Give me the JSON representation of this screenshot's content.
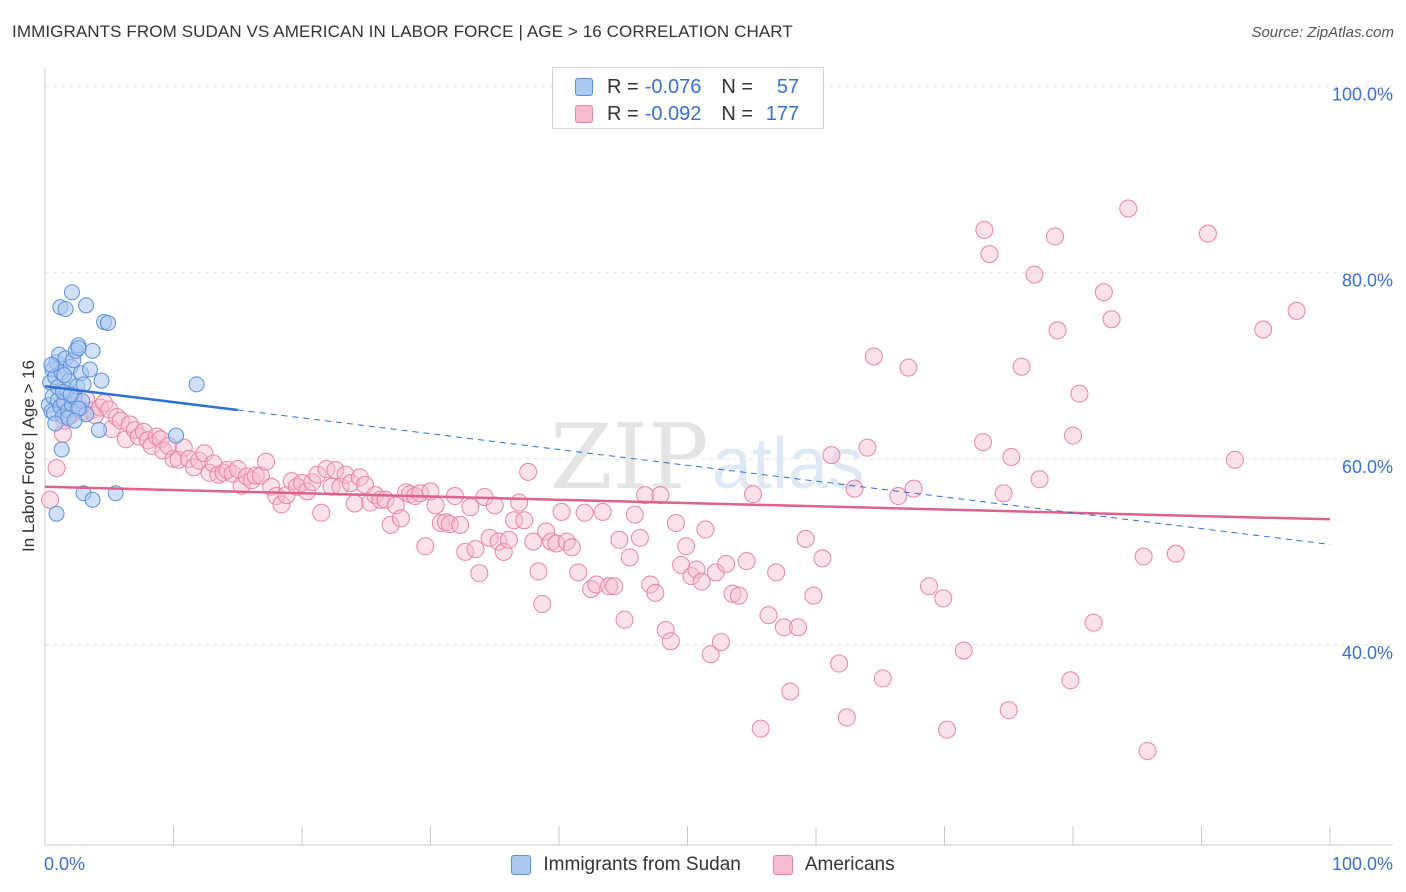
{
  "header": {
    "title": "IMMIGRANTS FROM SUDAN VS AMERICAN IN LABOR FORCE | AGE > 16 CORRELATION CHART",
    "source": "Source: ZipAtlas.com"
  },
  "legend_top": {
    "rows": [
      {
        "r_label": "R =",
        "r_value": "-0.076",
        "n_label": "N =",
        "n_value": "57"
      },
      {
        "r_label": "R =",
        "r_value": "-0.092",
        "n_label": "N =",
        "n_value": "177"
      }
    ]
  },
  "legend_bottom": {
    "items": [
      "Immigrants from Sudan",
      "Americans"
    ]
  },
  "watermark": {
    "zip": "ZIP",
    "atlas": "atlas"
  },
  "colors": {
    "blue_fill": "#aac8f0",
    "blue_stroke": "#5b8ede",
    "blue_line": "#2f6fd6",
    "pink_fill": "#f6bcd0",
    "pink_stroke": "#e884a8",
    "pink_line": "#e0608e",
    "axis_text": "#3b6fd4",
    "grid": "#e3e3e3"
  },
  "chart_data": {
    "type": "scatter",
    "title": "IMMIGRANTS FROM SUDAN VS AMERICAN IN LABOR FORCE | AGE > 16 CORRELATION CHART",
    "xlabel": "",
    "ylabel": "In Labor Force | Age > 16",
    "xlim": [
      0,
      100
    ],
    "ylim": [
      18.5,
      102
    ],
    "x_tick_labels": [
      "0.0%",
      "100.0%"
    ],
    "y_ticks": [
      40,
      60,
      80,
      100
    ],
    "y_tick_labels": [
      "40.0%",
      "60.0%",
      "80.0%",
      "100.0%"
    ],
    "grid": true,
    "series": [
      {
        "name": "Immigrants from Sudan",
        "R": -0.076,
        "N": 57,
        "trend": {
          "x0": 0,
          "y0": 67.8,
          "x1": 100,
          "y1": 50.8,
          "solid_until_x": 15
        },
        "points": [
          [
            0.3,
            65.8
          ],
          [
            0.4,
            68.2
          ],
          [
            0.5,
            65.1
          ],
          [
            0.6,
            69.6
          ],
          [
            0.6,
            66.7
          ],
          [
            0.7,
            64.9
          ],
          [
            0.8,
            68.8
          ],
          [
            0.9,
            70.4
          ],
          [
            1.0,
            66.3
          ],
          [
            1.0,
            67.7
          ],
          [
            1.1,
            71.2
          ],
          [
            1.2,
            65.6
          ],
          [
            1.3,
            69.3
          ],
          [
            1.4,
            64.6
          ],
          [
            1.5,
            66.1
          ],
          [
            1.6,
            70.8
          ],
          [
            1.7,
            67.4
          ],
          [
            1.8,
            65.2
          ],
          [
            1.9,
            68.4
          ],
          [
            2.0,
            69.9
          ],
          [
            2.1,
            65.8
          ],
          [
            2.2,
            70.6
          ],
          [
            2.3,
            66.6
          ],
          [
            2.4,
            71.6
          ],
          [
            2.5,
            67.8
          ],
          [
            2.6,
            72.2
          ],
          [
            2.7,
            65.4
          ],
          [
            2.8,
            69.2
          ],
          [
            2.9,
            66.2
          ],
          [
            3.0,
            68.0
          ],
          [
            3.2,
            64.8
          ],
          [
            3.5,
            69.6
          ],
          [
            1.2,
            76.3
          ],
          [
            1.6,
            76.1
          ],
          [
            2.1,
            77.9
          ],
          [
            3.2,
            76.5
          ],
          [
            4.6,
            74.7
          ],
          [
            4.9,
            74.6
          ],
          [
            3.7,
            71.6
          ],
          [
            2.6,
            71.9
          ],
          [
            4.4,
            68.4
          ],
          [
            11.8,
            68.0
          ],
          [
            2.6,
            65.4
          ],
          [
            1.8,
            64.4
          ],
          [
            4.2,
            63.1
          ],
          [
            10.2,
            62.5
          ],
          [
            1.3,
            61.0
          ],
          [
            3.0,
            56.3
          ],
          [
            3.7,
            55.6
          ],
          [
            5.5,
            56.3
          ],
          [
            0.9,
            54.1
          ],
          [
            1.4,
            67.2
          ],
          [
            0.8,
            63.8
          ],
          [
            2.3,
            64.1
          ],
          [
            1.5,
            69.0
          ],
          [
            0.5,
            70.1
          ],
          [
            2.0,
            66.9
          ]
        ]
      },
      {
        "name": "Americans",
        "R": -0.092,
        "N": 177,
        "trend": {
          "x0": 0,
          "y0": 57.0,
          "x1": 100,
          "y1": 53.5
        },
        "points": [
          [
            0.4,
            55.6
          ],
          [
            0.9,
            59.0
          ],
          [
            1.4,
            62.7
          ],
          [
            1.5,
            64.1
          ],
          [
            1.8,
            65.8
          ],
          [
            2.0,
            64.7
          ],
          [
            2.5,
            66.1
          ],
          [
            2.9,
            65.1
          ],
          [
            3.2,
            66.4
          ],
          [
            3.6,
            65.2
          ],
          [
            3.9,
            64.7
          ],
          [
            4.3,
            65.5
          ],
          [
            4.6,
            66.0
          ],
          [
            5.0,
            65.3
          ],
          [
            5.2,
            63.2
          ],
          [
            5.6,
            64.5
          ],
          [
            5.9,
            64.1
          ],
          [
            6.3,
            62.1
          ],
          [
            6.6,
            63.7
          ],
          [
            7.0,
            63.1
          ],
          [
            7.3,
            62.4
          ],
          [
            7.7,
            62.9
          ],
          [
            8.0,
            62.0
          ],
          [
            8.3,
            61.4
          ],
          [
            8.7,
            62.4
          ],
          [
            9.0,
            62.1
          ],
          [
            9.2,
            60.9
          ],
          [
            9.6,
            61.4
          ],
          [
            10.0,
            60.0
          ],
          [
            10.4,
            59.9
          ],
          [
            10.8,
            61.2
          ],
          [
            11.2,
            60.0
          ],
          [
            11.6,
            59.1
          ],
          [
            12.0,
            59.8
          ],
          [
            12.4,
            60.6
          ],
          [
            12.8,
            58.5
          ],
          [
            13.1,
            59.5
          ],
          [
            13.5,
            58.3
          ],
          [
            13.9,
            58.5
          ],
          [
            14.2,
            58.8
          ],
          [
            14.6,
            58.4
          ],
          [
            15.0,
            58.9
          ],
          [
            15.3,
            57.1
          ],
          [
            15.7,
            58.1
          ],
          [
            16.1,
            57.7
          ],
          [
            16.4,
            58.2
          ],
          [
            16.8,
            58.2
          ],
          [
            17.2,
            59.7
          ],
          [
            17.6,
            57.0
          ],
          [
            18.0,
            56.0
          ],
          [
            18.4,
            55.1
          ],
          [
            18.8,
            56.1
          ],
          [
            19.2,
            57.6
          ],
          [
            19.6,
            57.0
          ],
          [
            20.0,
            57.4
          ],
          [
            20.4,
            56.5
          ],
          [
            20.8,
            57.5
          ],
          [
            21.2,
            58.3
          ],
          [
            21.5,
            54.2
          ],
          [
            21.9,
            58.9
          ],
          [
            22.3,
            57.0
          ],
          [
            22.6,
            58.8
          ],
          [
            23.0,
            57.0
          ],
          [
            23.4,
            58.3
          ],
          [
            23.8,
            57.4
          ],
          [
            24.1,
            55.2
          ],
          [
            24.5,
            58.0
          ],
          [
            24.9,
            57.2
          ],
          [
            25.3,
            55.3
          ],
          [
            25.7,
            56.1
          ],
          [
            26.1,
            55.6
          ],
          [
            26.5,
            55.6
          ],
          [
            26.9,
            52.9
          ],
          [
            27.3,
            55.0
          ],
          [
            27.7,
            53.6
          ],
          [
            28.1,
            56.4
          ],
          [
            28.4,
            56.2
          ],
          [
            28.8,
            56.0
          ],
          [
            29.2,
            56.3
          ],
          [
            29.6,
            50.6
          ],
          [
            30.0,
            56.5
          ],
          [
            30.4,
            55.0
          ],
          [
            30.8,
            53.1
          ],
          [
            31.2,
            53.2
          ],
          [
            31.5,
            53.0
          ],
          [
            31.9,
            56.0
          ],
          [
            32.3,
            52.9
          ],
          [
            32.7,
            50.0
          ],
          [
            33.1,
            54.8
          ],
          [
            33.5,
            50.3
          ],
          [
            33.8,
            47.7
          ],
          [
            34.2,
            55.9
          ],
          [
            34.6,
            51.5
          ],
          [
            35.0,
            55.0
          ],
          [
            35.3,
            51.1
          ],
          [
            35.7,
            50.0
          ],
          [
            36.1,
            51.3
          ],
          [
            36.5,
            53.4
          ],
          [
            36.9,
            55.3
          ],
          [
            37.3,
            53.4
          ],
          [
            37.6,
            58.6
          ],
          [
            38.0,
            51.1
          ],
          [
            38.4,
            47.9
          ],
          [
            38.7,
            44.4
          ],
          [
            39.0,
            52.2
          ],
          [
            39.4,
            51.1
          ],
          [
            39.8,
            50.9
          ],
          [
            40.2,
            54.3
          ],
          [
            40.6,
            51.1
          ],
          [
            41.0,
            50.5
          ],
          [
            41.5,
            47.8
          ],
          [
            42.0,
            54.2
          ],
          [
            42.5,
            46.0
          ],
          [
            42.9,
            46.5
          ],
          [
            43.4,
            54.3
          ],
          [
            43.9,
            46.3
          ],
          [
            44.3,
            46.3
          ],
          [
            44.7,
            51.3
          ],
          [
            45.1,
            42.7
          ],
          [
            45.5,
            49.4
          ],
          [
            45.9,
            54.0
          ],
          [
            46.3,
            51.5
          ],
          [
            46.7,
            56.1
          ],
          [
            47.1,
            46.5
          ],
          [
            47.5,
            45.6
          ],
          [
            47.9,
            56.1
          ],
          [
            48.3,
            41.6
          ],
          [
            48.7,
            40.4
          ],
          [
            49.1,
            53.1
          ],
          [
            49.5,
            48.6
          ],
          [
            49.9,
            50.6
          ],
          [
            50.3,
            47.4
          ],
          [
            50.7,
            48.1
          ],
          [
            51.1,
            46.8
          ],
          [
            51.4,
            52.4
          ],
          [
            51.8,
            39.0
          ],
          [
            52.2,
            47.8
          ],
          [
            52.6,
            40.3
          ],
          [
            53.0,
            48.7
          ],
          [
            53.5,
            45.5
          ],
          [
            54.0,
            45.3
          ],
          [
            54.6,
            49.0
          ],
          [
            55.1,
            56.2
          ],
          [
            55.7,
            31.0
          ],
          [
            56.3,
            43.2
          ],
          [
            56.9,
            47.8
          ],
          [
            57.5,
            41.9
          ],
          [
            58.0,
            35.0
          ],
          [
            58.6,
            41.9
          ],
          [
            59.2,
            51.4
          ],
          [
            59.8,
            45.3
          ],
          [
            60.5,
            49.3
          ],
          [
            61.2,
            60.4
          ],
          [
            61.8,
            38.0
          ],
          [
            62.4,
            32.2
          ],
          [
            63.0,
            56.8
          ],
          [
            64.0,
            61.2
          ],
          [
            65.2,
            36.4
          ],
          [
            66.4,
            56.0
          ],
          [
            67.6,
            56.8
          ],
          [
            68.8,
            46.3
          ],
          [
            70.2,
            30.9
          ],
          [
            71.5,
            39.4
          ],
          [
            73.0,
            61.8
          ],
          [
            74.6,
            56.3
          ],
          [
            76.0,
            69.9
          ],
          [
            77.4,
            57.8
          ],
          [
            78.8,
            73.8
          ],
          [
            80.0,
            62.5
          ],
          [
            81.6,
            42.4
          ],
          [
            82.4,
            77.9
          ],
          [
            83.0,
            75.0
          ],
          [
            84.3,
            86.9
          ],
          [
            85.8,
            28.6
          ],
          [
            88.0,
            49.8
          ],
          [
            90.5,
            84.2
          ],
          [
            92.6,
            59.9
          ],
          [
            94.8,
            73.9
          ],
          [
            97.4,
            75.9
          ],
          [
            75.2,
            60.2
          ],
          [
            77.0,
            79.8
          ],
          [
            78.6,
            83.9
          ],
          [
            64.5,
            71.0
          ],
          [
            67.2,
            69.8
          ],
          [
            69.9,
            45.0
          ],
          [
            73.5,
            82.0
          ],
          [
            73.1,
            84.6
          ],
          [
            80.5,
            67.0
          ],
          [
            85.5,
            49.5
          ],
          [
            75.0,
            33.0
          ],
          [
            79.8,
            36.2
          ]
        ]
      }
    ]
  }
}
